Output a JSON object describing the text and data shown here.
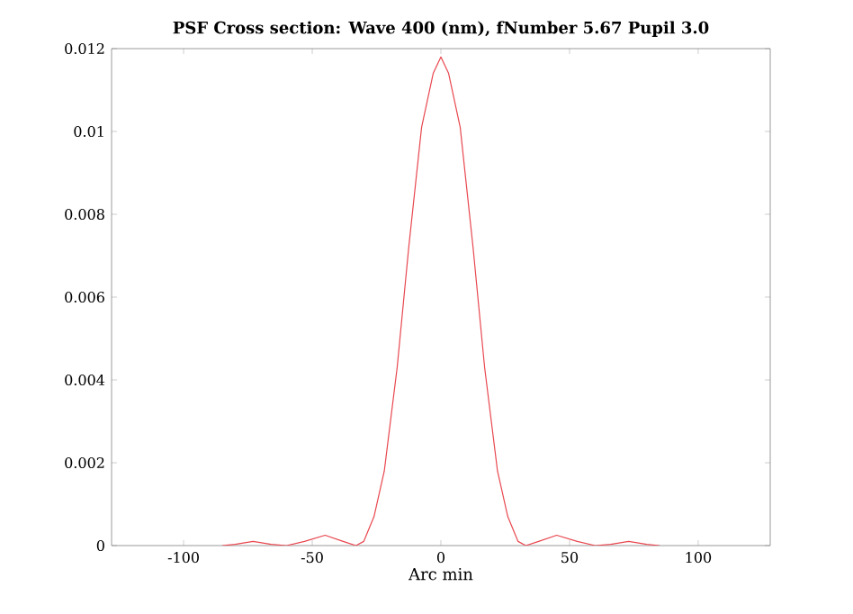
{
  "chart_data": {
    "type": "line",
    "title": "PSF Cross section: Wave 400 (nm), fNumber 5.67 Pupil 3.0",
    "xlabel": "Arc min",
    "x": [
      -85,
      -80,
      -73,
      -66,
      -60,
      -53,
      -45,
      -38,
      -33,
      -30,
      -26,
      -22,
      -17,
      -12.5,
      -7.5,
      -3,
      0,
      3,
      7.5,
      12.5,
      17,
      22,
      26,
      30,
      33,
      38,
      45,
      53,
      60,
      66,
      73,
      80,
      85
    ],
    "series": [
      {
        "color": "#e8474f",
        "values": [
          0,
          3e-05,
          0.0001,
          3e-05,
          0,
          0.0001,
          0.00025,
          0.0001,
          0,
          0.0001,
          0.0007,
          0.0018,
          0.0043,
          0.0072,
          0.0101,
          0.0114,
          0.0118,
          0.0114,
          0.0101,
          0.0072,
          0.0043,
          0.0018,
          0.0007,
          0.0001,
          0,
          0.0001,
          0.00025,
          0.0001,
          0,
          3e-05,
          0.0001,
          3e-05,
          0
        ]
      }
    ],
    "xlim": [
      -128,
      128
    ],
    "ylim": [
      0,
      0.012
    ],
    "xticks": [
      -100,
      -50,
      0,
      50,
      100
    ],
    "yticks": [
      0,
      0.002,
      0.004,
      0.006,
      0.008,
      0.01,
      0.012
    ],
    "grid": false,
    "marker": "none",
    "line_style": "solid"
  }
}
